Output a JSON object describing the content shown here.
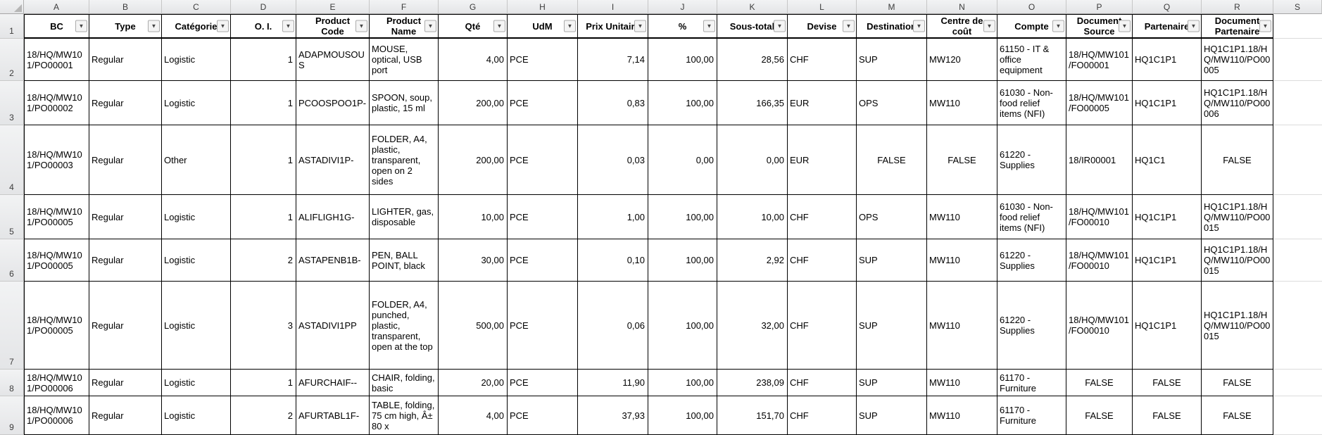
{
  "sheet": {
    "column_letters": [
      "A",
      "B",
      "C",
      "D",
      "E",
      "F",
      "G",
      "H",
      "I",
      "J",
      "K",
      "L",
      "M",
      "N",
      "O",
      "P",
      "Q",
      "R",
      "S"
    ],
    "row_numbers": [
      "1",
      "2",
      "3",
      "4",
      "5",
      "6",
      "7",
      "8",
      "9"
    ],
    "icons": {
      "filter_dropdown": "▼",
      "select_all_corner": "corner-triangle"
    },
    "colors": {
      "cell_border": "#000000",
      "strip_background": "#e9eaeb",
      "strip_text": "#3c3c3c",
      "gridline": "#dcdcdc"
    },
    "headers": [
      "BC",
      "Type",
      "Catégorie",
      "O. I.",
      "Product\nCode",
      "Product\nName",
      "Qté",
      "UdM",
      "Prix Unitaire",
      "%",
      "Sous-total",
      "Devise",
      "Destination",
      "Centre de\ncoût",
      "Compte",
      "Document\nSource",
      "Partenaire",
      "Document\nPartenaire"
    ],
    "rows": [
      [
        "18/HQ/MW101/PO00001",
        "Regular",
        "Logistic",
        "1",
        "ADAPMOUSOUS",
        "MOUSE, optical, USB port",
        "4,00",
        "PCE",
        "7,14",
        "100,00",
        "28,56",
        "CHF",
        "SUP",
        "MW120",
        "61150 - IT & office equipment",
        "18/HQ/MW101/FO00001",
        "HQ1C1P1",
        "HQ1C1P1.18/HQ/MW110/PO00005"
      ],
      [
        "18/HQ/MW101/PO00002",
        "Regular",
        "Logistic",
        "1",
        "PCOOSPOO1P-",
        "SPOON, soup, plastic, 15 ml",
        "200,00",
        "PCE",
        "0,83",
        "100,00",
        "166,35",
        "EUR",
        "OPS",
        "MW110",
        "61030 - Non-food relief items (NFI)",
        "18/HQ/MW101/FO00005",
        "HQ1C1P1",
        "HQ1C1P1.18/HQ/MW110/PO00006"
      ],
      [
        "18/HQ/MW101/PO00003",
        "Regular",
        "Other",
        "1",
        "ASTADIVI1P-",
        "FOLDER, A4, plastic, transparent, open on 2 sides",
        "200,00",
        "PCE",
        "0,03",
        "0,00",
        "0,00",
        "EUR",
        "FALSE",
        "FALSE",
        "61220 - Supplies",
        "18/IR00001",
        "HQ1C1",
        "FALSE"
      ],
      [
        "18/HQ/MW101/PO00005",
        "Regular",
        "Logistic",
        "1",
        "ALIFLIGH1G-",
        "LIGHTER, gas, disposable",
        "10,00",
        "PCE",
        "1,00",
        "100,00",
        "10,00",
        "CHF",
        "OPS",
        "MW110",
        "61030 - Non-food relief items (NFI)",
        "18/HQ/MW101/FO00010",
        "HQ1C1P1",
        "HQ1C1P1.18/HQ/MW110/PO00015"
      ],
      [
        "18/HQ/MW101/PO00005",
        "Regular",
        "Logistic",
        "2",
        "ASTAPENB1B-",
        "PEN, BALL POINT, black",
        "30,00",
        "PCE",
        "0,10",
        "100,00",
        "2,92",
        "CHF",
        "SUP",
        "MW110",
        "61220 - Supplies",
        "18/HQ/MW101/FO00010",
        "HQ1C1P1",
        "HQ1C1P1.18/HQ/MW110/PO00015"
      ],
      [
        "18/HQ/MW101/PO00005",
        "Regular",
        "Logistic",
        "3",
        "ASTADIVI1PP",
        "FOLDER, A4, punched, plastic, transparent, open at the top",
        "500,00",
        "PCE",
        "0,06",
        "100,00",
        "32,00",
        "CHF",
        "SUP",
        "MW110",
        "61220 - Supplies",
        "18/HQ/MW101/FO00010",
        "HQ1C1P1",
        "HQ1C1P1.18/HQ/MW110/PO00015"
      ],
      [
        "18/HQ/MW101/PO00006",
        "Regular",
        "Logistic",
        "1",
        "AFURCHAIF--",
        "CHAIR, folding, basic",
        "20,00",
        "PCE",
        "11,90",
        "100,00",
        "238,09",
        "CHF",
        "SUP",
        "MW110",
        "61170 - Furniture",
        "FALSE",
        "FALSE",
        "FALSE"
      ],
      [
        "18/HQ/MW101/PO00006",
        "Regular",
        "Logistic",
        "2",
        "AFURTABL1F-",
        "TABLE, folding, 75 cm high, Â± 80 x",
        "4,00",
        "PCE",
        "37,93",
        "100,00",
        "151,70",
        "CHF",
        "SUP",
        "MW110",
        "61170 - Furniture",
        "FALSE",
        "FALSE",
        "FALSE"
      ]
    ]
  }
}
